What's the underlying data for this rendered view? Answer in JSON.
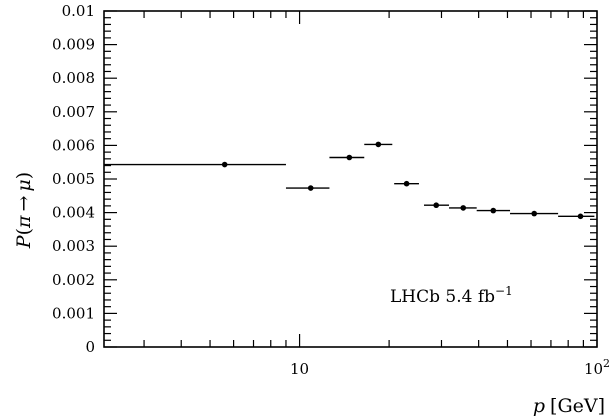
{
  "chart_data": {
    "type": "scatter",
    "title": "",
    "xlabel": {
      "var": "p",
      "unit": "[GeV]"
    },
    "ylabel": {
      "prefix": "P",
      "open": "(",
      "from": "π",
      "arrow": "→",
      "to": "μ",
      "close": ")"
    },
    "x_scale": "log",
    "xlim": [
      2.2,
      100
    ],
    "ylim": [
      0,
      0.01
    ],
    "x_tick_labels": [
      {
        "value": 10,
        "label": "10"
      },
      {
        "value": 100,
        "label": "10",
        "exp": "2"
      }
    ],
    "y_ticks": [
      0,
      0.001,
      0.002,
      0.003,
      0.004,
      0.005,
      0.006,
      0.007,
      0.008,
      0.009,
      0.01
    ],
    "y_tick_labels": [
      "0",
      "0.001",
      "0.002",
      "0.003",
      "0.004",
      "0.005",
      "0.006",
      "0.007",
      "0.008",
      "0.009",
      "0.01"
    ],
    "annotation": {
      "text": "LHCb 5.4 fb",
      "sup": "−1"
    },
    "grid": false,
    "points": [
      {
        "x": 5.6,
        "xlo": 2.2,
        "xhi": 9.0,
        "y": 0.00543
      },
      {
        "x": 10.9,
        "xlo": 9.0,
        "xhi": 12.6,
        "y": 0.00473
      },
      {
        "x": 14.7,
        "xlo": 12.6,
        "xhi": 16.5,
        "y": 0.00564
      },
      {
        "x": 18.4,
        "xlo": 16.5,
        "xhi": 20.5,
        "y": 0.00603
      },
      {
        "x": 22.9,
        "xlo": 20.8,
        "xhi": 25.2,
        "y": 0.00486
      },
      {
        "x": 28.8,
        "xlo": 26.2,
        "xhi": 31.8,
        "y": 0.00422
      },
      {
        "x": 35.5,
        "xlo": 31.8,
        "xhi": 39.4,
        "y": 0.00414
      },
      {
        "x": 44.8,
        "xlo": 39.4,
        "xhi": 51.0,
        "y": 0.00406
      },
      {
        "x": 61.5,
        "xlo": 51.0,
        "xhi": 74.0,
        "y": 0.00397
      },
      {
        "x": 88.0,
        "xlo": 74.0,
        "xhi": 98.0,
        "y": 0.00389
      }
    ]
  }
}
